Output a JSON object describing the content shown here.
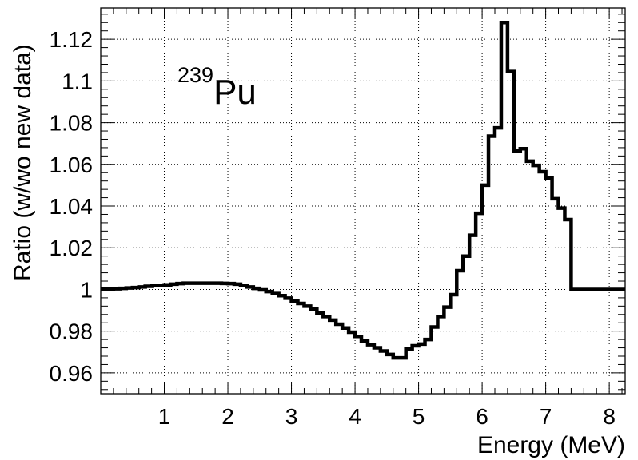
{
  "chart_data": {
    "type": "line",
    "style": "step-histogram",
    "title": "",
    "xlabel": "Energy (MeV)",
    "ylabel": "Ratio (w/wo new data)",
    "xlim": [
      0,
      8.25
    ],
    "ylim": [
      0.95,
      1.135
    ],
    "xticks": [
      1,
      2,
      3,
      4,
      5,
      6,
      7,
      8
    ],
    "xtick_labels": [
      "1",
      "2",
      "3",
      "4",
      "5",
      "6",
      "7",
      "8"
    ],
    "yticks": [
      0.96,
      0.98,
      1.0,
      1.02,
      1.04,
      1.06,
      1.08,
      1.1,
      1.12
    ],
    "ytick_labels": [
      "0.96",
      "0.98",
      "1",
      "1.02",
      "1.04",
      "1.06",
      "1.08",
      "1.1",
      "1.12"
    ],
    "grid": true,
    "annotation": {
      "isotope_mass": "239",
      "element": "Pu"
    },
    "series": [
      {
        "color": "#000000",
        "bin_width": 0.1,
        "x_start": 0,
        "values": [
          1.0001,
          1.0002,
          1.0003,
          1.0005,
          1.0007,
          1.0009,
          1.0012,
          1.0015,
          1.0018,
          1.002,
          1.0022,
          1.0025,
          1.0028,
          1.003,
          1.003,
          1.003,
          1.003,
          1.003,
          1.003,
          1.0029,
          1.0028,
          1.0025,
          1.002,
          1.0012,
          1.0005,
          0.9998,
          0.999,
          0.998,
          0.997,
          0.9958,
          0.9945,
          0.9933,
          0.992,
          0.9905,
          0.9888,
          0.987,
          0.9853,
          0.9833,
          0.9815,
          0.9795,
          0.9775,
          0.9752,
          0.9735,
          0.972,
          0.9705,
          0.9688,
          0.9672,
          0.9672,
          0.9714,
          0.973,
          0.9738,
          0.976,
          0.982,
          0.987,
          0.9915,
          0.9975,
          1.009,
          1.016,
          1.026,
          1.0365,
          1.05,
          1.0735,
          1.0775,
          1.128,
          1.1045,
          1.0665,
          1.0675,
          1.0615,
          1.0595,
          1.0565,
          1.0535,
          1.0435,
          1.039,
          1.0335,
          1.0,
          1.0,
          1.0,
          1.0,
          1.0,
          1.0,
          1.0,
          1.0,
          1.0
        ]
      }
    ]
  }
}
